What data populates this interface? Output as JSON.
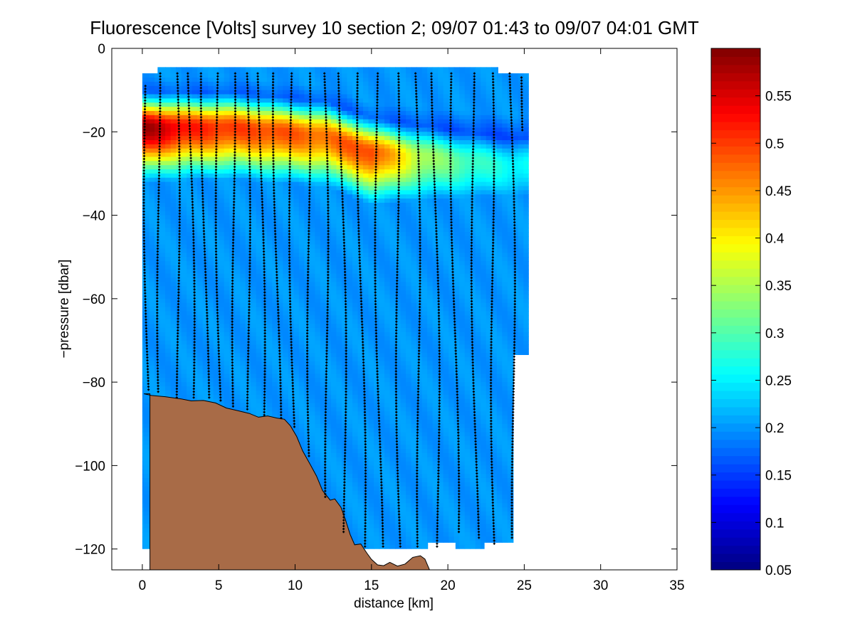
{
  "chart_data": {
    "type": "heatmap",
    "title": "Fluorescence [Volts] survey 10 section 2; 09/07 01:43 to 09/07 04:01 GMT",
    "xlabel": "distance [km]",
    "ylabel": "−pressure [dbar]",
    "xlim": [
      -2,
      35
    ],
    "ylim": [
      -125,
      0
    ],
    "x_ticks": [
      0,
      5,
      10,
      15,
      20,
      25,
      30,
      35
    ],
    "x_tick_labels": [
      "0",
      "5",
      "10",
      "15",
      "20",
      "25",
      "30",
      "35"
    ],
    "y_ticks": [
      0,
      -20,
      -40,
      -60,
      -80,
      -100,
      -120
    ],
    "y_tick_labels": [
      "0",
      "−20",
      "−40",
      "−60",
      "−80",
      "−100",
      "−120"
    ],
    "colorbar": {
      "colormap": "jet",
      "range": [
        0.05,
        0.6
      ],
      "ticks": [
        0.05,
        0.1,
        0.15,
        0.2,
        0.25,
        0.3,
        0.35,
        0.4,
        0.45,
        0.5,
        0.55
      ],
      "tick_labels": [
        "0.05",
        "0.1",
        "0.15",
        "0.2",
        "0.25",
        "0.3",
        "0.35",
        "0.4",
        "0.45",
        "0.5",
        "0.55"
      ]
    },
    "fluorescence_maximum_layer": [
      {
        "x": 0.5,
        "depth": -19,
        "value": 0.58
      },
      {
        "x": 3.0,
        "depth": -19,
        "value": 0.52
      },
      {
        "x": 6.0,
        "depth": -19,
        "value": 0.5
      },
      {
        "x": 9.0,
        "depth": -20,
        "value": 0.49
      },
      {
        "x": 12.0,
        "depth": -21,
        "value": 0.47
      },
      {
        "x": 15.0,
        "depth": -25,
        "value": 0.5
      },
      {
        "x": 18.0,
        "depth": -26,
        "value": 0.36
      },
      {
        "x": 21.0,
        "depth": -27,
        "value": 0.3
      },
      {
        "x": 24.0,
        "depth": -28,
        "value": 0.26
      }
    ],
    "background_value": 0.1,
    "surface_value": 0.2,
    "profiles": [
      {
        "x": 0.2,
        "top": -9,
        "bottom": -82
      },
      {
        "x": 1.0,
        "top": -6,
        "bottom": -83
      },
      {
        "x": 2.2,
        "top": -6,
        "bottom": -84
      },
      {
        "x": 3.1,
        "top": -6,
        "bottom": -84
      },
      {
        "x": 4.0,
        "top": -6,
        "bottom": -84
      },
      {
        "x": 4.9,
        "top": -6,
        "bottom": -85
      },
      {
        "x": 5.9,
        "top": -6,
        "bottom": -86
      },
      {
        "x": 6.8,
        "top": -6,
        "bottom": -87
      },
      {
        "x": 7.7,
        "top": -6,
        "bottom": -88
      },
      {
        "x": 8.7,
        "top": -6,
        "bottom": -89
      },
      {
        "x": 9.7,
        "top": -6,
        "bottom": -91
      },
      {
        "x": 10.8,
        "top": -6,
        "bottom": -98
      },
      {
        "x": 11.9,
        "top": -6,
        "bottom": -108
      },
      {
        "x": 13.0,
        "top": -6,
        "bottom": -116
      },
      {
        "x": 14.2,
        "top": -6,
        "bottom": -120
      },
      {
        "x": 15.3,
        "top": -6,
        "bottom": -120
      },
      {
        "x": 16.6,
        "top": -6,
        "bottom": -120
      },
      {
        "x": 17.9,
        "top": -6,
        "bottom": -120
      },
      {
        "x": 19.1,
        "top": -6,
        "bottom": -120
      },
      {
        "x": 20.3,
        "top": -6,
        "bottom": -116
      },
      {
        "x": 21.6,
        "top": -6,
        "bottom": -118
      },
      {
        "x": 22.8,
        "top": -6,
        "bottom": -119
      },
      {
        "x": 24.1,
        "top": -6,
        "bottom": -118
      },
      {
        "x": 25.0,
        "top": -7,
        "bottom": -20
      }
    ],
    "data_region_outline": [
      [
        0.0,
        -6
      ],
      [
        1.0,
        -6
      ],
      [
        1.0,
        -4.5
      ],
      [
        23.3,
        -4.5
      ],
      [
        23.3,
        -6
      ],
      [
        25.3,
        -6
      ],
      [
        25.3,
        -73.5
      ],
      [
        24.3,
        -73.5
      ],
      [
        24.3,
        -118.5
      ],
      [
        22.4,
        -118.5
      ],
      [
        22.4,
        -120
      ],
      [
        20.5,
        -120
      ],
      [
        20.5,
        -118.5
      ],
      [
        18.7,
        -118.5
      ],
      [
        18.7,
        -120
      ],
      [
        0.0,
        -120
      ]
    ],
    "seabed_profile": [
      [
        0.1,
        -82.8
      ],
      [
        0.6,
        -83.2
      ],
      [
        1.5,
        -83.5
      ],
      [
        2.5,
        -84.0
      ],
      [
        3.2,
        -84.5
      ],
      [
        4.0,
        -84.4
      ],
      [
        4.8,
        -85.0
      ],
      [
        5.5,
        -86.2
      ],
      [
        6.2,
        -86.8
      ],
      [
        7.0,
        -87.5
      ],
      [
        7.6,
        -88.4
      ],
      [
        8.2,
        -88.1
      ],
      [
        8.8,
        -88.6
      ],
      [
        9.3,
        -88.9
      ],
      [
        9.7,
        -90.5
      ],
      [
        10.1,
        -93.0
      ],
      [
        10.5,
        -96.5
      ],
      [
        11.0,
        -99.8
      ],
      [
        11.4,
        -102.5
      ],
      [
        11.8,
        -106.0
      ],
      [
        12.3,
        -108.3
      ],
      [
        12.6,
        -108.0
      ],
      [
        13.0,
        -110.0
      ],
      [
        13.3,
        -113.0
      ],
      [
        13.6,
        -116.5
      ],
      [
        13.9,
        -119.0
      ],
      [
        14.3,
        -118.8
      ],
      [
        14.7,
        -121.0
      ],
      [
        15.0,
        -122.5
      ],
      [
        15.4,
        -123.8
      ],
      [
        15.8,
        -124.0
      ],
      [
        16.2,
        -123.2
      ],
      [
        16.7,
        -124.1
      ],
      [
        17.2,
        -123.6
      ],
      [
        17.7,
        -122.0
      ],
      [
        18.2,
        -121.6
      ],
      [
        18.5,
        -122.4
      ],
      [
        18.8,
        -125.0
      ]
    ],
    "seabed_color": "#a86b47",
    "grid": false
  }
}
